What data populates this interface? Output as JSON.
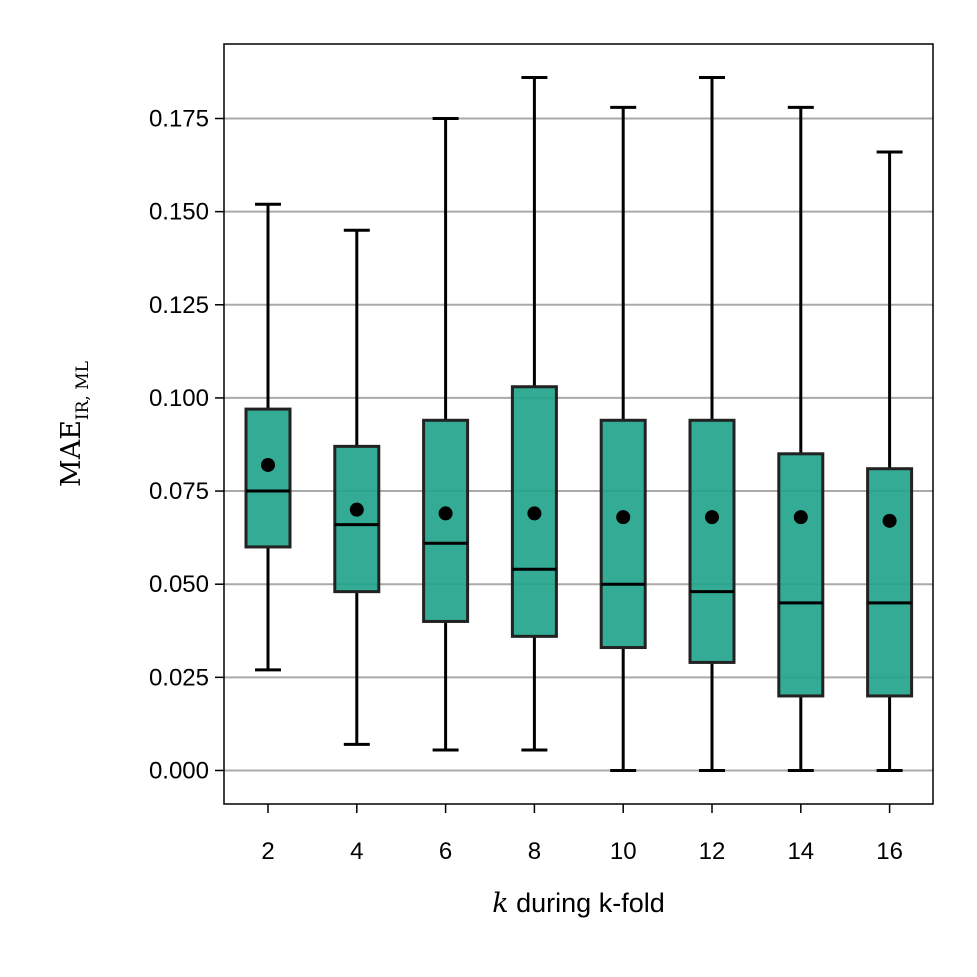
{
  "chart_data": {
    "type": "box",
    "xlabel_var": "k",
    "xlabel_rest": " during k-fold",
    "ylabel_main": "MAE",
    "ylabel_sub": "IR, ML",
    "ylim": [
      -0.009,
      0.195
    ],
    "yticks": [
      "0.000",
      "0.025",
      "0.050",
      "0.075",
      "0.100",
      "0.125",
      "0.150",
      "0.175"
    ],
    "grid": "horizontal",
    "colors": {
      "box_fill": "#22a48c",
      "box_edge": "#222222",
      "grid": "#aaaaaa"
    },
    "categories": [
      "2",
      "4",
      "6",
      "8",
      "10",
      "12",
      "14",
      "16"
    ],
    "boxes": [
      {
        "whisker_low": 0.027,
        "q1": 0.06,
        "median": 0.075,
        "q3": 0.097,
        "whisker_high": 0.152,
        "mean": 0.082
      },
      {
        "whisker_low": 0.007,
        "q1": 0.048,
        "median": 0.066,
        "q3": 0.087,
        "whisker_high": 0.145,
        "mean": 0.07
      },
      {
        "whisker_low": 0.0055,
        "q1": 0.04,
        "median": 0.061,
        "q3": 0.094,
        "whisker_high": 0.175,
        "mean": 0.069
      },
      {
        "whisker_low": 0.0055,
        "q1": 0.036,
        "median": 0.054,
        "q3": 0.103,
        "whisker_high": 0.186,
        "mean": 0.069
      },
      {
        "whisker_low": 0.0,
        "q1": 0.033,
        "median": 0.05,
        "q3": 0.094,
        "whisker_high": 0.178,
        "mean": 0.068
      },
      {
        "whisker_low": 0.0,
        "q1": 0.029,
        "median": 0.048,
        "q3": 0.094,
        "whisker_high": 0.186,
        "mean": 0.068
      },
      {
        "whisker_low": 0.0,
        "q1": 0.02,
        "median": 0.045,
        "q3": 0.085,
        "whisker_high": 0.178,
        "mean": 0.068
      },
      {
        "whisker_low": 0.0,
        "q1": 0.02,
        "median": 0.045,
        "q3": 0.081,
        "whisker_high": 0.166,
        "mean": 0.067
      }
    ]
  }
}
